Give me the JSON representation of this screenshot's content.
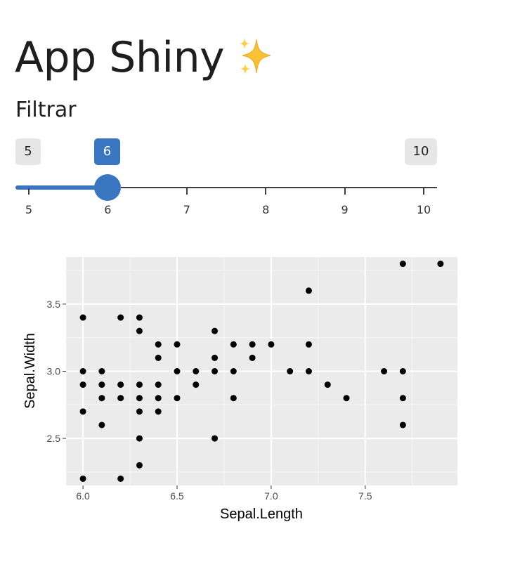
{
  "app": {
    "title": "App Shiny",
    "title_icon": "sparkles-icon"
  },
  "filter": {
    "label": "Filtrar",
    "slider": {
      "min": 5,
      "max": 10,
      "value": 6,
      "min_label": "5",
      "max_label": "10",
      "value_label": "6",
      "ticks": [
        "5",
        "6",
        "7",
        "8",
        "9",
        "10"
      ],
      "accent_color": "#3a76c0"
    }
  },
  "chart_data": {
    "type": "scatter",
    "xlabel": "Sepal.Length",
    "ylabel": "Sepal.Width",
    "xlim": [
      5.91,
      7.99
    ],
    "ylim": [
      2.15,
      3.85
    ],
    "x_ticks": [
      "6.0",
      "6.5",
      "7.0",
      "7.5"
    ],
    "y_ticks": [
      "2.5",
      "3.0",
      "3.5"
    ],
    "grid": true,
    "panel_background": "#ebebeb",
    "point_color": "#000000",
    "points": [
      {
        "x": 6.0,
        "y": 3.4
      },
      {
        "x": 6.0,
        "y": 3.0
      },
      {
        "x": 6.0,
        "y": 2.9
      },
      {
        "x": 6.0,
        "y": 2.7
      },
      {
        "x": 6.0,
        "y": 2.2
      },
      {
        "x": 6.1,
        "y": 3.0
      },
      {
        "x": 6.1,
        "y": 2.9
      },
      {
        "x": 6.1,
        "y": 2.8
      },
      {
        "x": 6.1,
        "y": 2.6
      },
      {
        "x": 6.2,
        "y": 3.4
      },
      {
        "x": 6.2,
        "y": 2.9
      },
      {
        "x": 6.2,
        "y": 2.8
      },
      {
        "x": 6.2,
        "y": 2.2
      },
      {
        "x": 6.3,
        "y": 3.4
      },
      {
        "x": 6.3,
        "y": 3.3
      },
      {
        "x": 6.3,
        "y": 2.9
      },
      {
        "x": 6.3,
        "y": 2.8
      },
      {
        "x": 6.3,
        "y": 2.7
      },
      {
        "x": 6.3,
        "y": 2.5
      },
      {
        "x": 6.3,
        "y": 2.3
      },
      {
        "x": 6.4,
        "y": 3.2
      },
      {
        "x": 6.4,
        "y": 3.1
      },
      {
        "x": 6.4,
        "y": 2.9
      },
      {
        "x": 6.4,
        "y": 2.8
      },
      {
        "x": 6.4,
        "y": 2.7
      },
      {
        "x": 6.5,
        "y": 3.2
      },
      {
        "x": 6.5,
        "y": 3.0
      },
      {
        "x": 6.5,
        "y": 2.8
      },
      {
        "x": 6.6,
        "y": 3.0
      },
      {
        "x": 6.6,
        "y": 2.9
      },
      {
        "x": 6.7,
        "y": 3.3
      },
      {
        "x": 6.7,
        "y": 3.1
      },
      {
        "x": 6.7,
        "y": 3.0
      },
      {
        "x": 6.7,
        "y": 2.5
      },
      {
        "x": 6.8,
        "y": 3.2
      },
      {
        "x": 6.8,
        "y": 3.0
      },
      {
        "x": 6.8,
        "y": 2.8
      },
      {
        "x": 6.9,
        "y": 3.2
      },
      {
        "x": 6.9,
        "y": 3.1
      },
      {
        "x": 7.0,
        "y": 3.2
      },
      {
        "x": 7.1,
        "y": 3.0
      },
      {
        "x": 7.2,
        "y": 3.6
      },
      {
        "x": 7.2,
        "y": 3.2
      },
      {
        "x": 7.2,
        "y": 3.0
      },
      {
        "x": 7.3,
        "y": 2.9
      },
      {
        "x": 7.4,
        "y": 2.8
      },
      {
        "x": 7.6,
        "y": 3.0
      },
      {
        "x": 7.7,
        "y": 3.8
      },
      {
        "x": 7.7,
        "y": 3.0
      },
      {
        "x": 7.7,
        "y": 2.8
      },
      {
        "x": 7.7,
        "y": 2.6
      },
      {
        "x": 7.9,
        "y": 3.8
      }
    ]
  }
}
